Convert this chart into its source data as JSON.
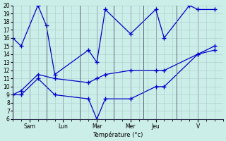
{
  "xlabel": "Température (°c)",
  "background_color": "#cceee8",
  "line_color": "#0000cc",
  "grid_color": "#aacccc",
  "ylim": [
    6,
    20
  ],
  "yticks": [
    6,
    7,
    8,
    9,
    10,
    11,
    12,
    13,
    14,
    15,
    16,
    17,
    18,
    19,
    20
  ],
  "xlim": [
    0,
    25
  ],
  "day_labels": [
    "Sam",
    "Lun",
    "Mar",
    "Mer",
    "Jeu",
    "V"
  ],
  "day_tick_positions": [
    2,
    6,
    10,
    14,
    17,
    22
  ],
  "day_dividers": [
    4,
    8,
    12,
    15.5,
    19.5
  ],
  "minor_xtick_step": 1,
  "series_high": {
    "x": [
      0,
      1,
      3,
      4,
      5,
      9,
      10,
      11,
      14,
      17,
      18,
      21,
      22,
      24
    ],
    "y": [
      16,
      15,
      20,
      17.5,
      11.5,
      14.5,
      13,
      19.5,
      16.5,
      19.5,
      16,
      20,
      19.5,
      19.5
    ]
  },
  "series_low": {
    "x": [
      0,
      1,
      3,
      5,
      9,
      10,
      11,
      14,
      17,
      18,
      22,
      24
    ],
    "y": [
      9,
      9,
      11,
      9,
      8.5,
      6,
      8.5,
      8.5,
      10,
      10,
      14,
      14.5
    ]
  },
  "series_trend": {
    "x": [
      0,
      1,
      3,
      5,
      9,
      10,
      11,
      14,
      17,
      18,
      22,
      24
    ],
    "y": [
      9,
      9.5,
      11.5,
      11,
      10.5,
      11,
      11.5,
      12,
      12,
      12,
      14,
      15
    ]
  }
}
